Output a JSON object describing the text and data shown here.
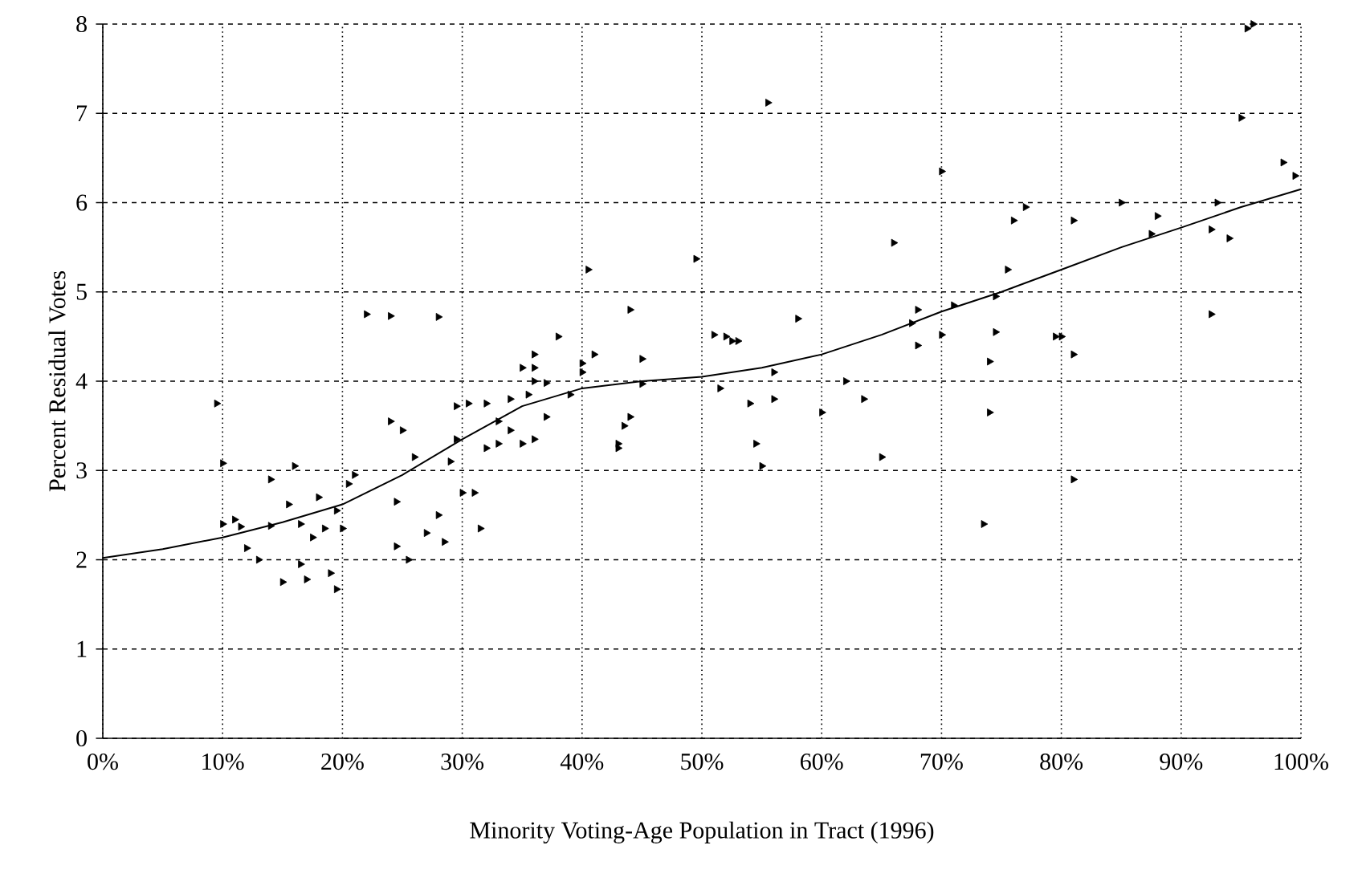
{
  "chart_data": {
    "type": "scatter",
    "xlabel": "Minority Voting-Age Population in Tract (1996)",
    "ylabel": "Percent Residual Votes",
    "xlim": [
      0,
      100
    ],
    "ylim": [
      0,
      8
    ],
    "xticks": [
      {
        "value": 0,
        "label": "0%"
      },
      {
        "value": 10,
        "label": "10%"
      },
      {
        "value": 20,
        "label": "20%"
      },
      {
        "value": 30,
        "label": "30%"
      },
      {
        "value": 40,
        "label": "40%"
      },
      {
        "value": 50,
        "label": "50%"
      },
      {
        "value": 60,
        "label": "60%"
      },
      {
        "value": 70,
        "label": "70%"
      },
      {
        "value": 80,
        "label": "80%"
      },
      {
        "value": 90,
        "label": "90%"
      },
      {
        "value": 100,
        "label": "100%"
      }
    ],
    "yticks": [
      0,
      1,
      2,
      3,
      4,
      5,
      6,
      7,
      8
    ],
    "grid": true,
    "series": [
      {
        "color": "#000000",
        "marker": "triangle",
        "x": [
          9.5,
          10,
          10,
          11,
          11.5,
          12,
          13,
          14,
          14,
          15,
          15.5,
          16,
          16.5,
          16.5,
          17,
          17.5,
          18,
          18.5,
          19,
          19.5,
          19.5,
          20,
          20.5,
          21,
          22,
          24,
          24,
          25,
          24.5,
          24.5,
          25.5,
          26,
          27,
          28,
          28,
          28.5,
          29,
          29.5,
          29.5,
          30,
          30.5,
          31,
          31.5,
          32,
          32,
          33,
          33,
          34,
          34,
          35,
          35,
          35.5,
          36,
          36,
          36,
          36,
          37,
          37,
          38,
          39,
          40,
          40,
          40.5,
          41,
          43,
          43,
          44,
          43.5,
          44,
          45,
          45,
          49.5,
          51,
          51.5,
          52,
          52.5,
          53,
          54,
          54.5,
          55,
          55.5,
          56,
          56,
          58,
          60,
          62,
          63.5,
          65,
          66,
          67.5,
          68,
          68,
          70,
          70,
          71,
          73.5,
          74,
          74,
          74.5,
          74.5,
          75.5,
          76,
          77,
          79.5,
          80,
          81,
          81,
          81,
          85,
          87.5,
          88,
          92.5,
          92.5,
          93,
          94,
          95,
          95.5,
          96,
          98.5,
          99.5
        ],
        "values": [
          3.75,
          3.08,
          2.4,
          2.45,
          2.37,
          2.13,
          2.0,
          2.9,
          2.38,
          1.75,
          2.62,
          3.05,
          2.4,
          1.95,
          1.78,
          2.25,
          2.7,
          2.35,
          1.85,
          1.67,
          2.55,
          2.35,
          2.85,
          2.95,
          4.75,
          4.73,
          3.55,
          3.45,
          2.65,
          2.15,
          2.0,
          3.15,
          2.3,
          4.72,
          2.5,
          2.2,
          3.1,
          3.72,
          3.35,
          2.75,
          3.75,
          2.75,
          2.35,
          3.75,
          3.25,
          3.55,
          3.3,
          3.8,
          3.45,
          4.15,
          3.3,
          3.85,
          4.3,
          4.15,
          4.0,
          3.35,
          3.6,
          3.98,
          4.5,
          3.85,
          4.2,
          4.1,
          5.25,
          4.3,
          3.25,
          3.3,
          4.8,
          3.5,
          3.6,
          4.25,
          3.97,
          5.37,
          4.52,
          3.92,
          4.5,
          4.45,
          4.45,
          3.75,
          3.3,
          3.05,
          7.12,
          4.1,
          3.8,
          4.7,
          3.65,
          4.0,
          3.8,
          3.15,
          5.55,
          4.65,
          4.8,
          4.4,
          6.35,
          4.52,
          4.85,
          2.4,
          4.22,
          3.65,
          4.55,
          4.95,
          5.25,
          5.8,
          5.95,
          4.5,
          4.5,
          5.8,
          4.3,
          2.9,
          6.0,
          5.65,
          5.85,
          5.7,
          4.75,
          6.0,
          5.6,
          6.95,
          7.95,
          8.0,
          6.45,
          6.3
        ]
      },
      {
        "type": "line",
        "color": "#000000",
        "x": [
          0,
          5,
          10,
          15,
          20,
          25,
          30,
          35,
          40,
          45,
          50,
          55,
          60,
          65,
          70,
          75,
          80,
          85,
          90,
          95,
          100
        ],
        "values": [
          2.02,
          2.12,
          2.25,
          2.42,
          2.62,
          2.95,
          3.35,
          3.72,
          3.92,
          4.0,
          4.05,
          4.15,
          4.3,
          4.52,
          4.78,
          5.0,
          5.25,
          5.5,
          5.72,
          5.95,
          6.15
        ]
      }
    ]
  }
}
